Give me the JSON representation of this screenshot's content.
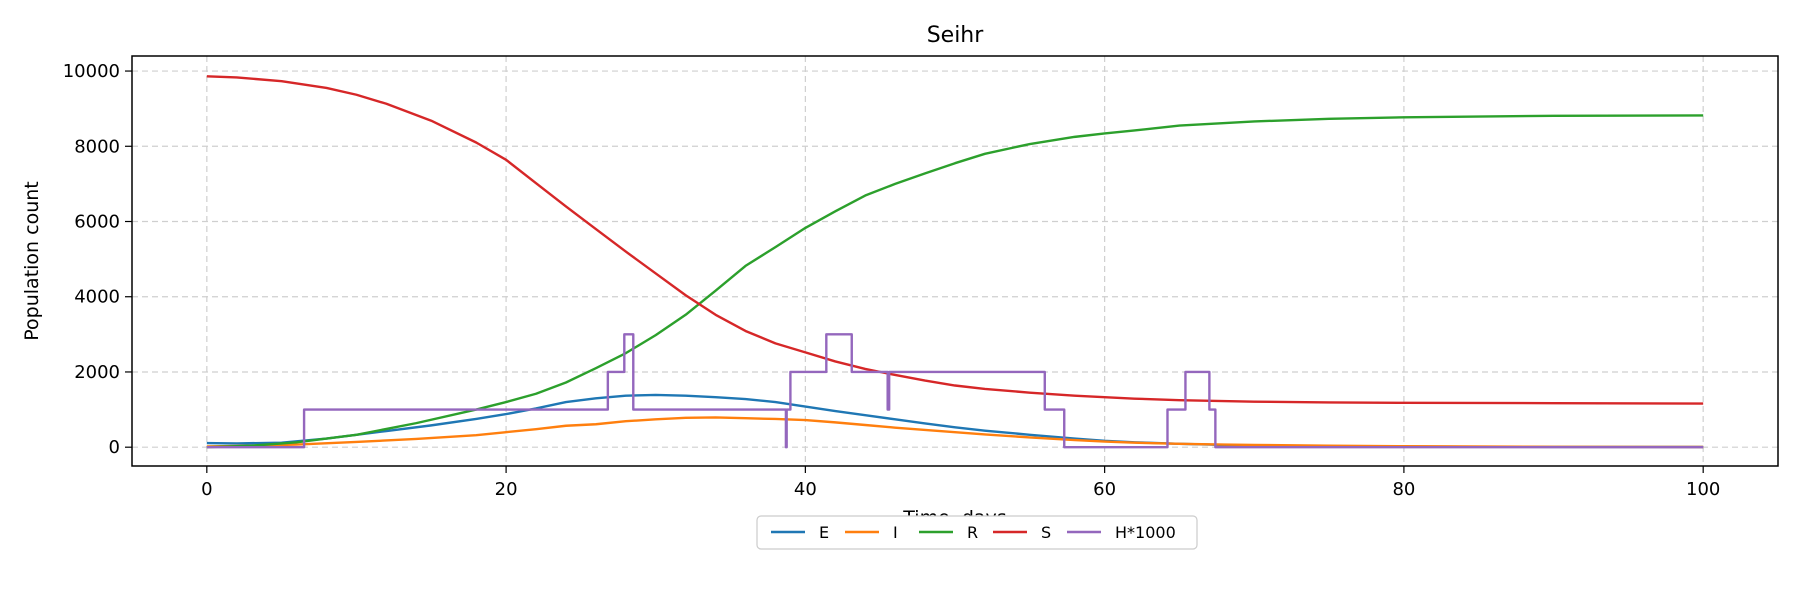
{
  "chart_data": {
    "type": "line",
    "title": "Seihr",
    "xlabel": "Time, days",
    "ylabel": "Population count",
    "xlim": [
      -5,
      105
    ],
    "ylim": [
      -500,
      10400
    ],
    "xticks": [
      0,
      20,
      40,
      60,
      80,
      100
    ],
    "yticks": [
      0,
      2000,
      4000,
      6000,
      8000,
      10000
    ],
    "grid": true,
    "legend_position": "bottom-center",
    "series": [
      {
        "name": "E",
        "color": "#1f77b4",
        "step": false,
        "x": [
          0,
          2,
          5,
          8,
          10,
          12,
          15,
          18,
          20,
          22,
          24,
          26,
          28,
          30,
          32,
          34,
          36,
          38,
          40,
          42,
          44,
          46,
          48,
          50,
          52,
          55,
          58,
          60,
          62,
          65,
          68,
          70,
          75,
          80,
          90,
          100
        ],
        "y": [
          110,
          100,
          120,
          230,
          330,
          430,
          580,
          750,
          880,
          1030,
          1200,
          1300,
          1370,
          1390,
          1370,
          1330,
          1280,
          1200,
          1080,
          960,
          850,
          740,
          630,
          530,
          440,
          330,
          230,
          170,
          130,
          90,
          60,
          40,
          25,
          15,
          8,
          5
        ]
      },
      {
        "name": "I",
        "color": "#ff7f0e",
        "step": false,
        "x": [
          0,
          3,
          6,
          10,
          14,
          18,
          20,
          22,
          24,
          26,
          28,
          30,
          32,
          34,
          36,
          38,
          40,
          42,
          44,
          46,
          48,
          50,
          52,
          55,
          58,
          60,
          62,
          65,
          68,
          70,
          75,
          80,
          90,
          100
        ],
        "y": [
          20,
          40,
          70,
          140,
          220,
          320,
          400,
          480,
          570,
          610,
          690,
          740,
          780,
          790,
          770,
          750,
          720,
          660,
          590,
          520,
          460,
          400,
          340,
          260,
          190,
          150,
          120,
          90,
          70,
          60,
          40,
          25,
          10,
          5
        ]
      },
      {
        "name": "R",
        "color": "#2ca02c",
        "step": false,
        "x": [
          0,
          3,
          6,
          10,
          14,
          18,
          20,
          22,
          24,
          26,
          28,
          30,
          32,
          34,
          36,
          38,
          40,
          42,
          44,
          46,
          48,
          50,
          52,
          55,
          58,
          60,
          62,
          65,
          70,
          75,
          80,
          90,
          100
        ],
        "y": [
          0,
          40,
          130,
          330,
          640,
          1000,
          1200,
          1420,
          1720,
          2100,
          2500,
          2980,
          3520,
          4160,
          4820,
          5320,
          5830,
          6270,
          6690,
          7000,
          7280,
          7550,
          7800,
          8060,
          8250,
          8340,
          8420,
          8550,
          8660,
          8730,
          8770,
          8810,
          8820
        ]
      },
      {
        "name": "S",
        "color": "#d62728",
        "step": false,
        "x": [
          0,
          2,
          5,
          8,
          10,
          12,
          15,
          18,
          20,
          22,
          24,
          26,
          28,
          30,
          32,
          34,
          36,
          38,
          40,
          42,
          44,
          46,
          48,
          50,
          52,
          55,
          58,
          60,
          62,
          65,
          70,
          75,
          80,
          90,
          100
        ],
        "y": [
          9860,
          9830,
          9730,
          9550,
          9370,
          9130,
          8680,
          8100,
          7640,
          7020,
          6400,
          5800,
          5200,
          4620,
          4040,
          3520,
          3090,
          2760,
          2520,
          2280,
          2080,
          1920,
          1770,
          1640,
          1550,
          1450,
          1370,
          1330,
          1290,
          1250,
          1210,
          1190,
          1180,
          1170,
          1160
        ]
      },
      {
        "name": "H*1000",
        "color": "#9467bd",
        "step": true,
        "x": [
          0,
          6.5,
          26.8,
          27.9,
          28.5,
          38.7,
          38.75,
          38.8,
          39.0,
          41.4,
          43.1,
          45.5,
          45.55,
          45.6,
          45.7,
          56.0,
          57.3,
          64.2,
          65.4,
          67.0,
          67.4,
          100
        ],
        "y": [
          0,
          1000,
          2000,
          3000,
          1000,
          0,
          1000,
          1000,
          2000,
          3000,
          2000,
          1000,
          1000,
          2000,
          2000,
          1000,
          0,
          1000,
          2000,
          1000,
          0,
          0
        ]
      }
    ]
  }
}
